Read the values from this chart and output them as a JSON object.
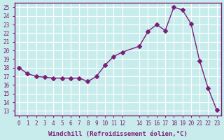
{
  "x": [
    0,
    1,
    2,
    3,
    4,
    5,
    6,
    7,
    8,
    9,
    10,
    11,
    12,
    14,
    15,
    16,
    17,
    18,
    19,
    20,
    21,
    22,
    23
  ],
  "y": [
    18,
    17.3,
    17,
    16.9,
    16.8,
    16.8,
    16.8,
    16.8,
    16.4,
    17,
    18.3,
    19.3,
    19.8,
    20.5,
    22.2,
    23.0,
    22.3,
    25.0,
    24.7,
    23.1,
    18.8,
    15.6,
    13.1
  ],
  "line_color": "#7b1f7b",
  "marker": "D",
  "marker_size": 3,
  "bg_color": "#c8ecec",
  "grid_color": "#ffffff",
  "xlabel": "Windchill (Refroidissement éolien,°C)",
  "xlabel_color": "#7b1f7b",
  "ylim": [
    12.5,
    25.5
  ],
  "xlim": [
    -0.5,
    23.5
  ],
  "xticks": [
    0,
    1,
    2,
    3,
    4,
    5,
    6,
    7,
    8,
    9,
    10,
    11,
    12,
    14,
    15,
    16,
    17,
    18,
    19,
    20,
    21,
    22,
    23
  ],
  "yticks": [
    13,
    14,
    15,
    16,
    17,
    18,
    19,
    20,
    21,
    22,
    23,
    24,
    25
  ],
  "tick_color": "#7b1f7b",
  "spine_color": "#7b1f7b"
}
